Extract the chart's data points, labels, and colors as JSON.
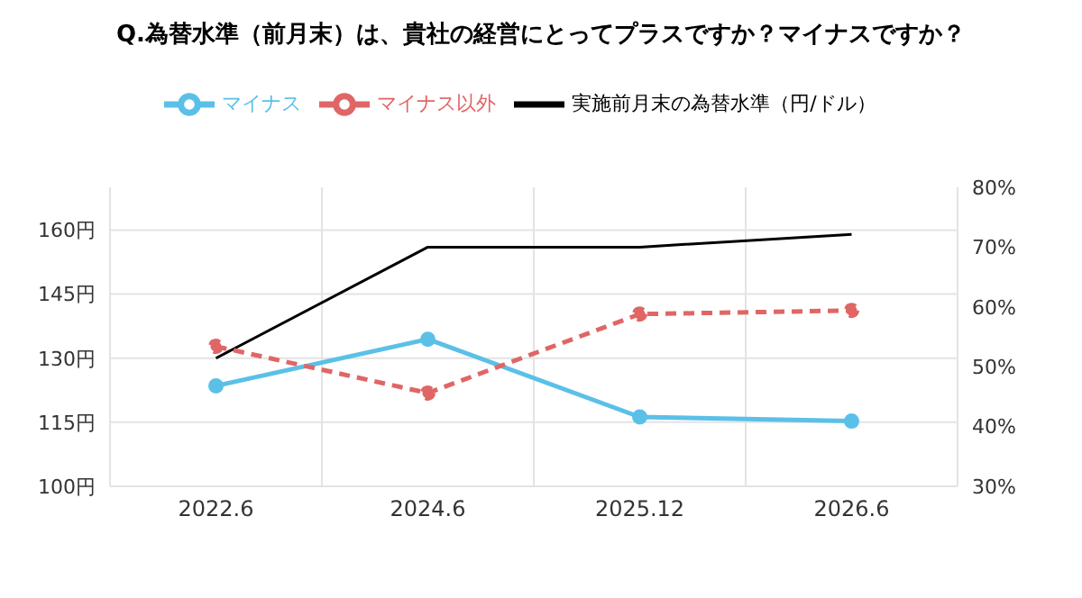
{
  "chart_data": {
    "type": "line",
    "title": "Q.為替水準（前月末）は、貴社の経営にとってプラスですか？マイナスですか？",
    "categories": [
      "2022.6",
      "2024.6",
      "2025.12",
      "2026.6"
    ],
    "series": [
      {
        "name": "実施前月末の為替水準（円/ドル）",
        "color": "#000000",
        "values": [
          130,
          156,
          156,
          159
        ],
        "marker": "none",
        "line_style": "solid"
      },
      {
        "name": "マイナス",
        "color": "#5bc0e8",
        "values": [
          46.8,
          54.6,
          41.6,
          40.9
        ],
        "axis": "y2",
        "marker": "circle",
        "line_style": "solid"
      },
      {
        "name": "マイナス以外",
        "color": "#e06666",
        "values": [
          53.4,
          45.6,
          58.8,
          59.4
        ],
        "axis": "y2",
        "marker": "circle",
        "line_style": "dashed"
      }
    ],
    "ylim": [
      100,
      170
    ],
    "yticks": [
      {
        "value": 100,
        "label": "100円"
      },
      {
        "value": 115,
        "label": "115円"
      },
      {
        "value": 130,
        "label": "130円"
      },
      {
        "value": 145,
        "label": "145円"
      },
      {
        "value": 160,
        "label": "160円"
      }
    ],
    "y2lim": [
      30,
      80
    ],
    "y2ticks": [
      {
        "value": 30,
        "label": "30%"
      },
      {
        "value": 40,
        "label": "40%"
      },
      {
        "value": 50,
        "label": "50%"
      },
      {
        "value": 60,
        "label": "60%"
      },
      {
        "value": 70,
        "label": "70%"
      },
      {
        "value": 80,
        "label": "80%"
      }
    ],
    "grid": true,
    "legend": "top"
  }
}
